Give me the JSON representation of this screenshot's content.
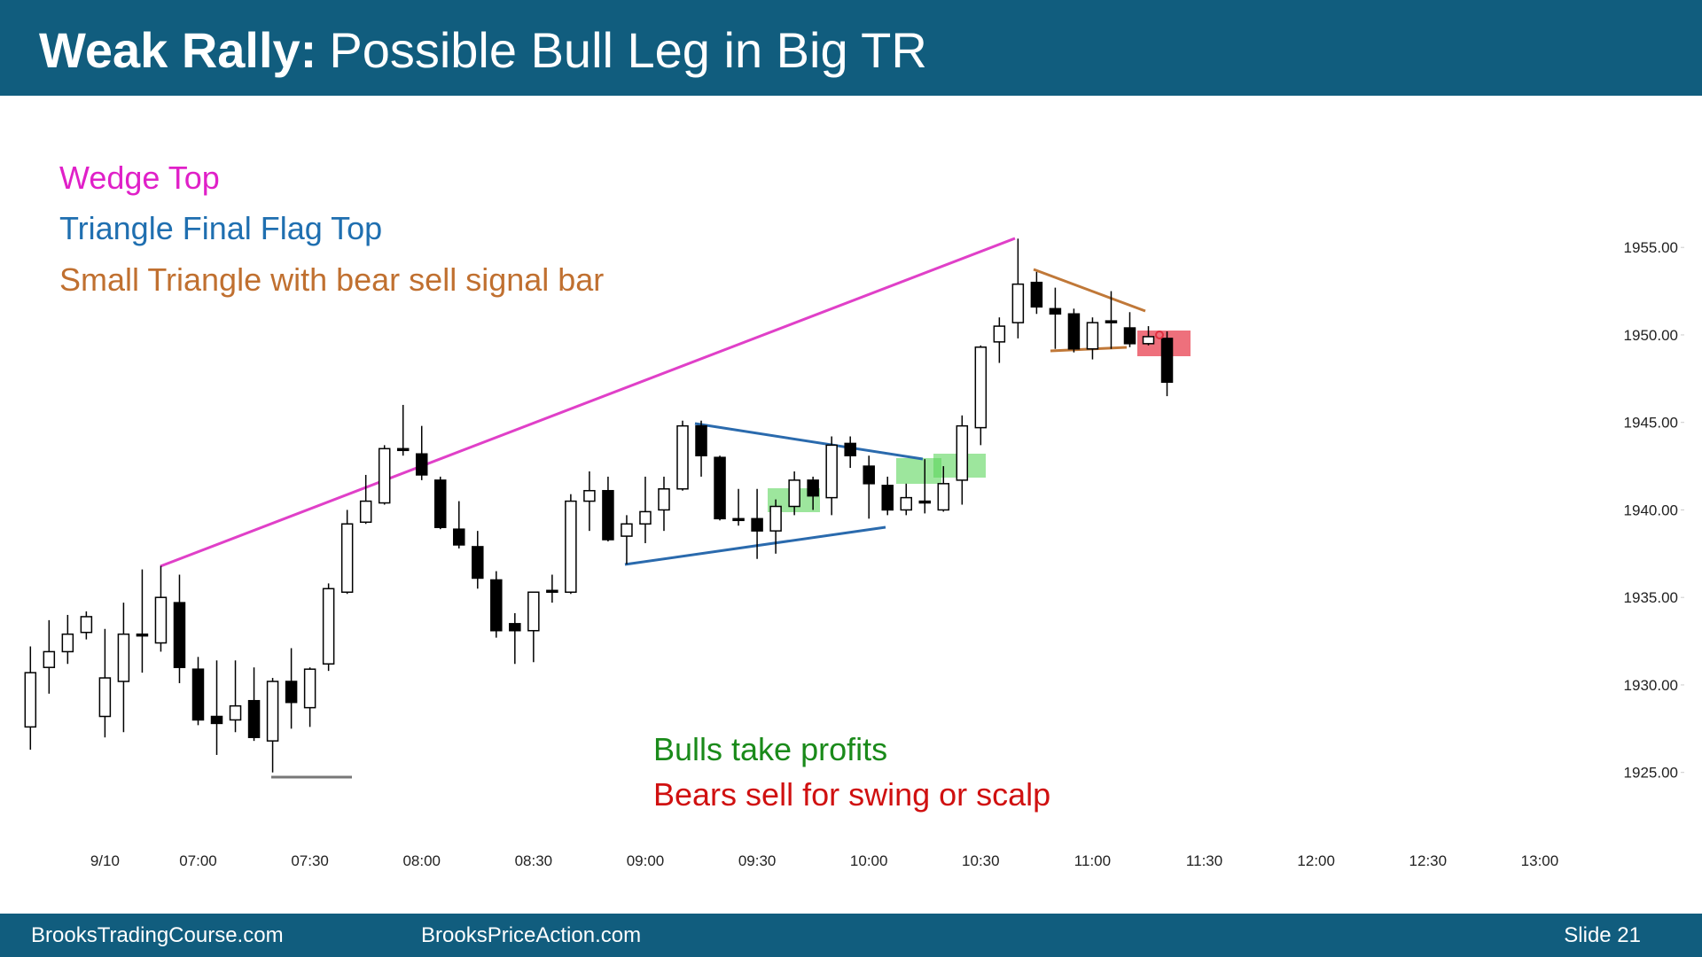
{
  "chart_data": {
    "type": "candlestick",
    "title_bold": "Weak Rally:",
    "title": "Possible Bull Leg in Big TR",
    "annotations": [
      "Wedge Top",
      "Triangle Final Flag Top",
      "Small Triangle with bear sell signal bar",
      "Bulls take profits",
      "Bears sell for swing or scalp"
    ],
    "annotation_colors": [
      "#e020c8",
      "#1f6fb0",
      "#c07030",
      "#1a8a1a",
      "#d01010"
    ],
    "footer": {
      "left": "BrooksTradingCourse.com",
      "middle": "BrooksPriceAction.com",
      "right": "Slide  21"
    },
    "categories": [
      null,
      null,
      null,
      null,
      "9/10",
      null,
      null,
      null,
      null,
      "07:00",
      null,
      null,
      null,
      null,
      null,
      "07:30",
      null,
      null,
      null,
      null,
      null,
      "08:00",
      null,
      null,
      null,
      null,
      null,
      "08:30",
      null,
      null,
      null,
      null,
      null,
      "09:00",
      null,
      null,
      null,
      null,
      null,
      "09:30",
      null,
      null,
      null,
      null,
      null,
      "10:00",
      null,
      null,
      null,
      null,
      null,
      "10:30",
      null,
      null,
      null,
      null,
      null,
      "11:00",
      null,
      null,
      null,
      null,
      null,
      "11:30",
      null,
      null,
      null,
      null,
      null,
      "12:00",
      null,
      null,
      null,
      null,
      null,
      "12:30",
      null,
      null,
      null,
      null,
      null,
      "13:00"
    ],
    "open": [
      1927.6,
      1931.0,
      1931.9,
      1933.0,
      1928.2,
      1930.2,
      1932.9,
      1932.4,
      1934.7,
      1930.9,
      1928.2,
      1928.0,
      1929.1,
      1926.8,
      1930.2,
      1928.7,
      1931.2,
      1935.3,
      1939.3,
      1940.4,
      1943.5,
      1943.2,
      1941.7,
      1938.9,
      1937.9,
      1936.0,
      1933.5,
      1933.1,
      1935.4,
      1935.3,
      1940.5,
      1941.1,
      1938.5,
      1939.2,
      1940.0,
      1941.2,
      1944.8,
      1943.0,
      1939.5,
      1939.5,
      1938.8,
      1940.2,
      1941.7,
      1940.7,
      1943.8,
      1942.5,
      1941.4,
      1940.0,
      1940.5,
      1940.0,
      1941.7,
      1944.7,
      1949.6,
      1950.7,
      1953.0,
      1951.5,
      1951.2,
      1949.2,
      1950.8,
      1950.4,
      1949.5,
      1949.8,
      null,
      null,
      null,
      null,
      null,
      null,
      null,
      null,
      null,
      null,
      null,
      null,
      null,
      null,
      null,
      null,
      null,
      null,
      null,
      null
    ],
    "high": [
      1932.2,
      1933.7,
      1934.0,
      1934.2,
      1933.2,
      1934.7,
      1936.6,
      1936.8,
      1936.3,
      1931.6,
      1931.4,
      1931.4,
      1931.0,
      1930.4,
      1932.1,
      1931.0,
      1935.8,
      1940.0,
      1942.0,
      1943.7,
      1946.0,
      1944.8,
      1941.9,
      1940.5,
      1938.8,
      1936.5,
      1934.1,
      1935.3,
      1936.3,
      1940.9,
      1942.2,
      1941.9,
      1939.7,
      1941.9,
      1941.9,
      1945.1,
      1945.1,
      1943.1,
      1941.2,
      1941.2,
      1940.6,
      1942.2,
      1941.9,
      1944.2,
      1944.2,
      1943.1,
      1941.9,
      1941.5,
      1942.9,
      1942.5,
      1945.4,
      1949.4,
      1951.0,
      1955.5,
      1953.6,
      1952.7,
      1951.5,
      1951.0,
      1952.5,
      1951.3,
      1950.5,
      1950.2,
      null,
      null,
      null,
      null,
      null,
      null,
      null,
      null,
      null,
      null,
      null,
      null,
      null,
      null,
      null,
      null,
      null,
      null,
      null,
      null
    ],
    "low": [
      1926.3,
      1929.5,
      1931.2,
      1932.6,
      1927.0,
      1927.3,
      1930.7,
      1931.9,
      1930.1,
      1927.7,
      1926.0,
      1927.3,
      1926.8,
      1925.0,
      1927.5,
      1927.6,
      1930.8,
      1935.2,
      1939.2,
      1940.3,
      1943.1,
      1941.7,
      1938.9,
      1937.8,
      1935.5,
      1932.7,
      1931.2,
      1931.3,
      1934.7,
      1935.2,
      1938.8,
      1938.2,
      1936.9,
      1938.1,
      1938.8,
      1941.1,
      1941.9,
      1939.4,
      1939.1,
      1937.2,
      1937.5,
      1939.7,
      1940.0,
      1939.7,
      1942.4,
      1939.5,
      1939.7,
      1939.7,
      1939.8,
      1939.9,
      1940.3,
      1943.7,
      1948.4,
      1949.8,
      1951.2,
      1949.2,
      1949.0,
      1948.6,
      1949.2,
      1949.3,
      1949.4,
      1946.5,
      null,
      null,
      null,
      null,
      null,
      null,
      null,
      null,
      null,
      null,
      null,
      null,
      null,
      null,
      null,
      null,
      null,
      null,
      null,
      null
    ],
    "close": [
      1930.7,
      1931.9,
      1932.9,
      1933.9,
      1930.4,
      1932.9,
      1932.8,
      1935.0,
      1931.0,
      1928.0,
      1927.8,
      1928.8,
      1927.0,
      1930.2,
      1929.0,
      1930.9,
      1935.5,
      1939.2,
      1940.5,
      1943.5,
      1943.4,
      1942.0,
      1939.0,
      1938.0,
      1936.1,
      1933.1,
      1933.1,
      1935.3,
      1935.3,
      1940.5,
      1941.1,
      1938.3,
      1939.2,
      1939.9,
      1941.2,
      1944.8,
      1943.1,
      1939.5,
      1939.4,
      1938.8,
      1940.2,
      1941.7,
      1940.8,
      1943.7,
      1943.1,
      1941.5,
      1940.0,
      1940.7,
      1940.4,
      1941.5,
      1944.8,
      1949.3,
      1950.5,
      1952.9,
      1951.6,
      1951.2,
      1949.2,
      1950.7,
      1950.7,
      1949.5,
      1949.9,
      1947.3,
      null,
      null,
      null,
      null,
      null,
      null,
      null,
      null,
      null,
      null,
      null,
      null,
      null,
      null,
      null,
      null,
      null,
      null,
      null,
      null
    ],
    "up_color": "#ffffff",
    "down_color": "#000000",
    "ylim": [
      1920,
      1960
    ],
    "yticks": [
      {
        "value": 1925,
        "label": "1925.00"
      },
      {
        "value": 1930,
        "label": "1930.00"
      },
      {
        "value": 1935,
        "label": "1935.00"
      },
      {
        "value": 1940,
        "label": "1940.00"
      },
      {
        "value": 1945,
        "label": "1945.00"
      },
      {
        "value": 1950,
        "label": "1950.00"
      },
      {
        "value": 1955,
        "label": "1955.00"
      }
    ],
    "grid": false
  }
}
